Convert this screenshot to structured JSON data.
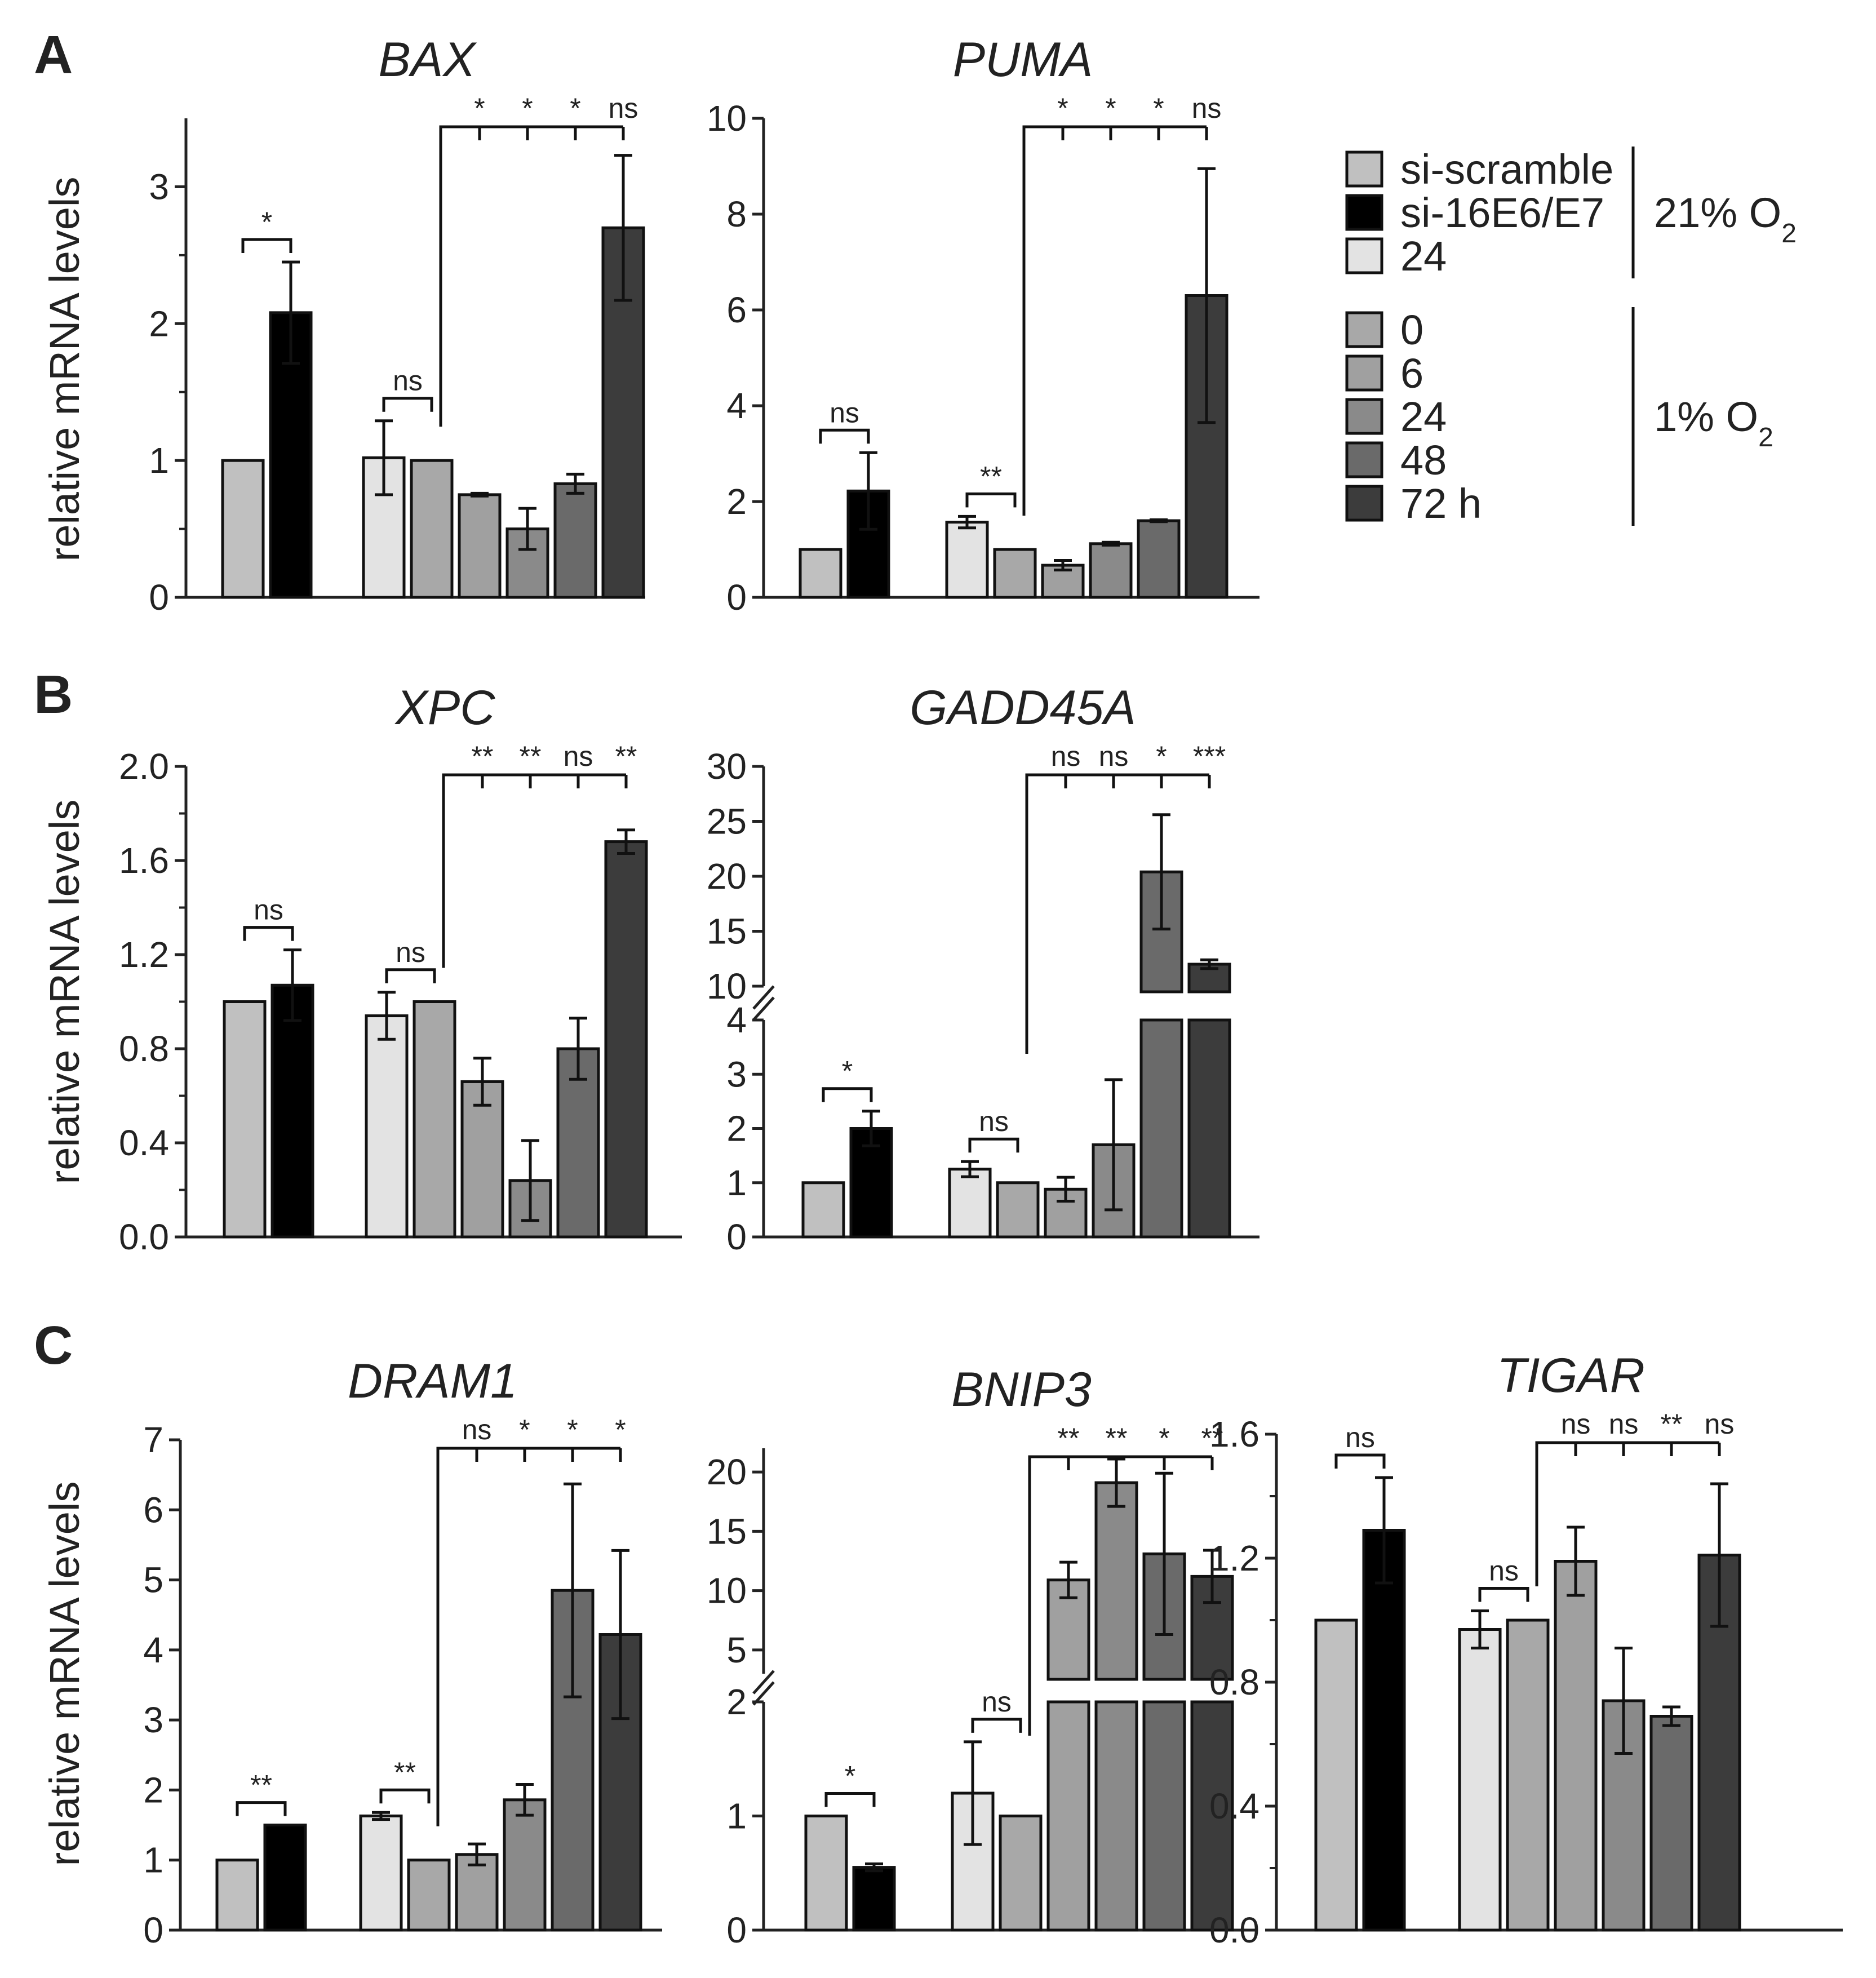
{
  "panel_labels": [
    "A",
    "B",
    "C"
  ],
  "ylabel": "relative mRNA levels",
  "legend": {
    "groups": [
      {
        "label": "21% O",
        "subscript": "2",
        "items": [
          {
            "label": "si-scramble",
            "color": "#c0c0c0"
          },
          {
            "label": "si-16E6/E7",
            "color": "#000000"
          },
          {
            "label": "24",
            "color": "#e3e3e3"
          }
        ]
      },
      {
        "label": "1% O",
        "subscript": "2",
        "items": [
          {
            "label": "0",
            "color": "#a8a8a8"
          },
          {
            "label": "6",
            "color": "#a0a0a0"
          },
          {
            "label": "24",
            "color": "#8a8a8a"
          },
          {
            "label": "48",
            "color": "#6a6a6a"
          },
          {
            "label": "72 h",
            "color": "#3c3c3c"
          }
        ]
      }
    ]
  },
  "chart_data": [
    {
      "type": "bar",
      "panel": "A",
      "title": "BAX",
      "ylim": [
        0,
        3.5
      ],
      "yticks": [
        "0",
        "1",
        "2",
        "3"
      ],
      "values": [
        1.0,
        2.08,
        1.02,
        1.0,
        0.75,
        0.5,
        0.83,
        2.7
      ],
      "errors": [
        0,
        0.37,
        0.27,
        0,
        0.01,
        0.15,
        0.07,
        0.53
      ],
      "pair_sig": [
        "*",
        "ns"
      ],
      "bracket_sig": [
        "*",
        "*",
        "*",
        "ns"
      ]
    },
    {
      "type": "bar",
      "panel": "A",
      "title": "PUMA",
      "ylim": [
        0,
        10
      ],
      "yticks": [
        "0",
        "2",
        "4",
        "6",
        "8",
        "10"
      ],
      "values": [
        1.0,
        2.22,
        1.57,
        1.0,
        0.67,
        1.12,
        1.6,
        6.3
      ],
      "errors": [
        0,
        0.8,
        0.12,
        0,
        0.1,
        0.03,
        0.02,
        2.65
      ],
      "pair_sig": [
        "ns",
        "**"
      ],
      "bracket_sig": [
        "*",
        "*",
        "*",
        "ns"
      ]
    },
    {
      "type": "bar",
      "panel": "B",
      "title": "XPC",
      "ylim": [
        0,
        2.0
      ],
      "yticks": [
        "0.0",
        "0.4",
        "0.8",
        "1.2",
        "1.6",
        "2.0"
      ],
      "values": [
        1.0,
        1.07,
        0.94,
        1.0,
        0.66,
        0.24,
        0.8,
        1.68
      ],
      "errors": [
        0,
        0.15,
        0.1,
        0,
        0.1,
        0.17,
        0.13,
        0.05
      ],
      "pair_sig": [
        "ns",
        "ns"
      ],
      "bracket_sig": [
        "**",
        "**",
        "ns",
        "**"
      ]
    },
    {
      "type": "bar",
      "panel": "B",
      "title": "GADD45A",
      "broken_axis": true,
      "lower_ylim": [
        0,
        4
      ],
      "lower_yticks": [
        "0",
        "1",
        "2",
        "3",
        "4"
      ],
      "upper_ylim": [
        10,
        30
      ],
      "upper_yticks": [
        "10",
        "15",
        "20",
        "25",
        "30"
      ],
      "values": [
        1.0,
        2.0,
        1.25,
        1.0,
        0.88,
        1.7,
        20.4,
        12.0
      ],
      "errors": [
        0,
        0.32,
        0.14,
        0,
        0.22,
        1.2,
        5.2,
        0.4
      ],
      "pair_sig": [
        "*",
        "ns"
      ],
      "bracket_sig": [
        "ns",
        "ns",
        "*",
        "***"
      ]
    },
    {
      "type": "bar",
      "panel": "C",
      "title": "DRAM1",
      "ylim": [
        0,
        7
      ],
      "yticks": [
        "0",
        "1",
        "2",
        "3",
        "4",
        "5",
        "6",
        "7"
      ],
      "values": [
        1.0,
        1.5,
        1.63,
        1.0,
        1.08,
        1.86,
        4.85,
        4.22
      ],
      "errors": [
        0,
        0,
        0.05,
        0,
        0.15,
        0.22,
        1.52,
        1.2
      ],
      "pair_sig": [
        "**",
        "**"
      ],
      "bracket_sig": [
        "ns",
        "*",
        "*",
        "*"
      ]
    },
    {
      "type": "bar",
      "panel": "C",
      "title": "BNIP3",
      "broken_axis": true,
      "lower_ylim": [
        0,
        2
      ],
      "lower_yticks": [
        "0",
        "1",
        "2"
      ],
      "upper_ylim": [
        3,
        22
      ],
      "upper_yticks": [
        "5",
        "10",
        "15",
        "20"
      ],
      "values": [
        1.0,
        0.55,
        1.2,
        1.0,
        10.9,
        19.1,
        13.1,
        11.2
      ],
      "errors": [
        0,
        0.03,
        0.45,
        0,
        1.5,
        2.0,
        6.8,
        2.2
      ],
      "pair_sig": [
        "*",
        "ns"
      ],
      "bracket_sig": [
        "**",
        "**",
        "*",
        "**"
      ]
    },
    {
      "type": "bar",
      "panel": "C",
      "title": "TIGAR",
      "ylim": [
        0,
        1.6
      ],
      "yticks": [
        "0.0",
        "0.4",
        "0.8",
        "1.2",
        "1.6"
      ],
      "values": [
        1.0,
        1.29,
        0.97,
        1.0,
        1.19,
        0.74,
        0.69,
        1.21
      ],
      "errors": [
        0,
        0.17,
        0.06,
        0,
        0.11,
        0.17,
        0.03,
        0.23
      ],
      "pair_sig": [
        "ns",
        "ns"
      ],
      "bracket_sig": [
        "ns",
        "ns",
        "**",
        "ns"
      ]
    }
  ]
}
